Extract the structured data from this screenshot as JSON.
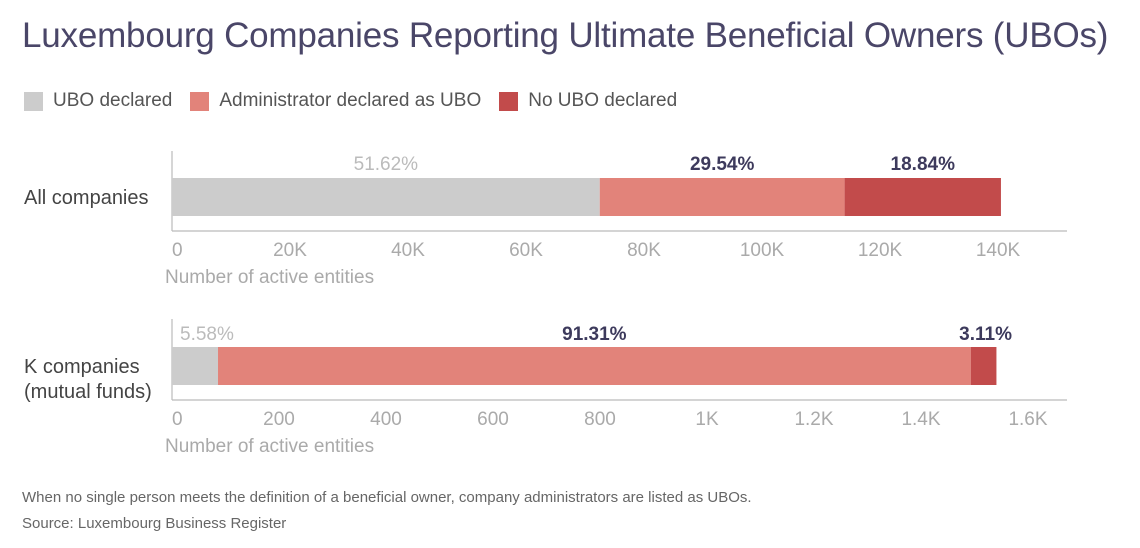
{
  "title": "Luxembourg Companies Reporting Ultimate Beneficial Owners (UBOs)",
  "legend": [
    {
      "label": "UBO declared",
      "color": "#cccccc"
    },
    {
      "label": "Administrator declared as UBO",
      "color": "#e2837a"
    },
    {
      "label": "No UBO declared",
      "color": "#c24b4b"
    }
  ],
  "chart_data": [
    {
      "type": "bar",
      "orientation": "horizontal",
      "stacked": true,
      "category": "All companies",
      "xlabel": "Number of active entities",
      "xlim": [
        0,
        150000
      ],
      "ticks": [
        0,
        20000,
        40000,
        60000,
        80000,
        100000,
        120000,
        140000
      ],
      "tick_labels": [
        "0",
        "20K",
        "40K",
        "60K",
        "80K",
        "100K",
        "120K",
        "140K"
      ],
      "series": [
        {
          "name": "UBO declared",
          "value": 72500,
          "label": "51.62%"
        },
        {
          "name": "Administrator declared as UBO",
          "value": 41500,
          "label": "29.54%"
        },
        {
          "name": "No UBO declared",
          "value": 26500,
          "label": "18.84%"
        }
      ]
    },
    {
      "type": "bar",
      "orientation": "horizontal",
      "stacked": true,
      "category": "K companies\n(mutual funds)",
      "category_lines": [
        "K companies",
        "(mutual funds)"
      ],
      "xlabel": "Number of active entities",
      "xlim": [
        0,
        1700
      ],
      "ticks": [
        0,
        200,
        400,
        600,
        800,
        1000,
        1200,
        1400,
        1600
      ],
      "tick_labels": [
        "0",
        "200",
        "400",
        "600",
        "800",
        "1K",
        "1.2K",
        "1.4K",
        "1.6K"
      ],
      "series": [
        {
          "name": "UBO declared",
          "value": 86,
          "label": "5.58%"
        },
        {
          "name": "Administrator declared as UBO",
          "value": 1407,
          "label": "91.31%"
        },
        {
          "name": "No UBO declared",
          "value": 48,
          "label": "3.11%"
        }
      ]
    }
  ],
  "footnote": "When no single person meets the definition of a beneficial owner, company administrators are listed as UBOs.",
  "source": "Source: Luxembourg Business Register"
}
